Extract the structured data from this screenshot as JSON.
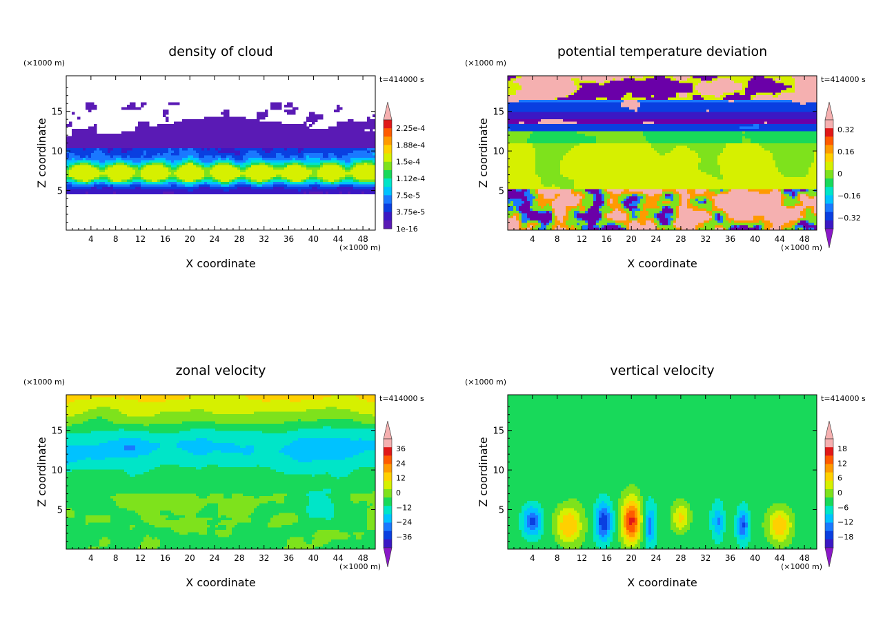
{
  "chart_data": [
    {
      "type": "heatmap",
      "title": "density of cloud",
      "xlabel": "X coordinate",
      "ylabel": "Z coordinate",
      "x_unit": "(×1000 m)",
      "y_unit": "(×1000 m)",
      "time_label": "t=414000 s",
      "xlim": [
        0,
        50
      ],
      "ylim": [
        0,
        19.5
      ],
      "x_ticks": [
        "4",
        "8",
        "12",
        "16",
        "20",
        "24",
        "28",
        "32",
        "36",
        "40",
        "44",
        "48"
      ],
      "y_ticks": [
        "5",
        "10",
        "15"
      ],
      "colorbar_labels": [
        "2.25e-4",
        "1.88e-4",
        "1.5e-4",
        "1.12e-4",
        "7.5e-5",
        "3.75e-5",
        "1e-16"
      ],
      "colorbar_min_arrow": false,
      "field": "cloud"
    },
    {
      "type": "heatmap",
      "title": "potential temperature deviation",
      "xlabel": "X coordinate",
      "ylabel": "Z coordinate",
      "x_unit": "(×1000 m)",
      "y_unit": "(×1000 m)",
      "time_label": "t=414000 s",
      "xlim": [
        0,
        50
      ],
      "ylim": [
        0,
        19.5
      ],
      "x_ticks": [
        "4",
        "8",
        "12",
        "16",
        "20",
        "24",
        "28",
        "32",
        "36",
        "40",
        "44",
        "48"
      ],
      "y_ticks": [
        "5",
        "10",
        "15"
      ],
      "colorbar_labels": [
        "0.32",
        "0.16",
        "0",
        "−0.16",
        "−0.32"
      ],
      "colorbar_min_arrow": true,
      "field": "theta"
    },
    {
      "type": "heatmap",
      "title": "zonal velocity",
      "xlabel": "X coordinate",
      "ylabel": "Z coordinate",
      "x_unit": "(×1000 m)",
      "y_unit": "(×1000 m)",
      "time_label": "t=414000 s",
      "xlim": [
        0,
        50
      ],
      "ylim": [
        0,
        19.5
      ],
      "x_ticks": [
        "4",
        "8",
        "12",
        "16",
        "20",
        "24",
        "28",
        "32",
        "36",
        "40",
        "44",
        "48"
      ],
      "y_ticks": [
        "5",
        "10",
        "15"
      ],
      "colorbar_labels": [
        "36",
        "24",
        "12",
        "0",
        "−12",
        "−24",
        "−36"
      ],
      "colorbar_min_arrow": true,
      "field": "u"
    },
    {
      "type": "heatmap",
      "title": "vertical velocity",
      "xlabel": "X coordinate",
      "ylabel": "Z coordinate",
      "x_unit": "(×1000 m)",
      "y_unit": "(×1000 m)",
      "time_label": "t=414000 s",
      "xlim": [
        0,
        50
      ],
      "ylim": [
        0,
        19.5
      ],
      "x_ticks": [
        "4",
        "8",
        "12",
        "16",
        "20",
        "24",
        "28",
        "32",
        "36",
        "40",
        "44",
        "48"
      ],
      "y_ticks": [
        "5",
        "10",
        "15"
      ],
      "colorbar_labels": [
        "18",
        "12",
        "6",
        "0",
        "−6",
        "−12",
        "−18"
      ],
      "colorbar_min_arrow": true,
      "field": "w"
    }
  ],
  "colors": {
    "palette": [
      "#6a00a8",
      "#3b18c4",
      "#0a3fe0",
      "#1a78ff",
      "#00c2ff",
      "#00e5c8",
      "#18d95a",
      "#7ee21c",
      "#d6f000",
      "#ffd000",
      "#ff9a00",
      "#ff5a00",
      "#e01818",
      "#f5b0b0"
    ],
    "cloud_base": "#5a1ab5",
    "tip_top": "#f5b0b0",
    "tip_bottom": "#8a18c8"
  }
}
